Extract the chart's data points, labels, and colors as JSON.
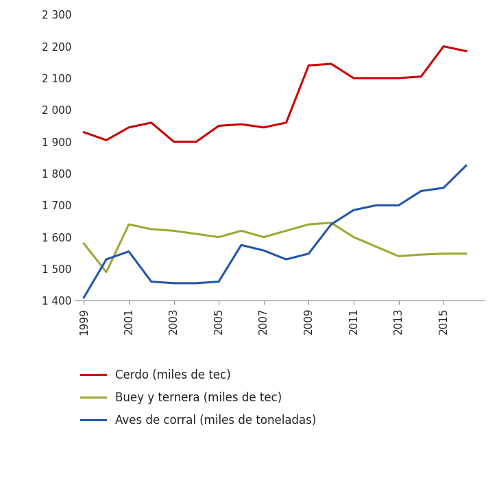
{
  "years": [
    1999,
    2000,
    2001,
    2002,
    2003,
    2004,
    2005,
    2006,
    2007,
    2008,
    2009,
    2010,
    2011,
    2012,
    2013,
    2014,
    2015,
    2016
  ],
  "cerdo": [
    1930,
    1905,
    1945,
    1960,
    1900,
    1900,
    1950,
    1955,
    1945,
    1960,
    2140,
    2145,
    2100,
    2100,
    2100,
    2105,
    2200,
    2185
  ],
  "buey": [
    1580,
    1490,
    1640,
    1625,
    1620,
    1610,
    1600,
    1620,
    1600,
    1620,
    1640,
    1645,
    1600,
    1570,
    1540,
    1545,
    1548,
    1548
  ],
  "aves": [
    1410,
    1530,
    1555,
    1460,
    1455,
    1455,
    1460,
    1575,
    1558,
    1530,
    1548,
    1640,
    1685,
    1700,
    1700,
    1745,
    1755,
    1825
  ],
  "cerdo_color": "#cc0000",
  "buey_color": "#99aa33",
  "aves_color": "#2255aa",
  "cerdo_label": "Cerdo (miles de tec)",
  "buey_label": "Buey y ternera (miles de tec)",
  "aves_label": "Aves de corral (miles de toneladas)",
  "ylim": [
    1400,
    2300
  ],
  "yticks": [
    1400,
    1500,
    1600,
    1700,
    1800,
    1900,
    2000,
    2100,
    2200,
    2300
  ],
  "xticks": [
    1999,
    2001,
    2003,
    2005,
    2007,
    2009,
    2011,
    2013,
    2015
  ],
  "linewidth": 2.2,
  "background_color": "#ffffff",
  "font_color": "#222222"
}
